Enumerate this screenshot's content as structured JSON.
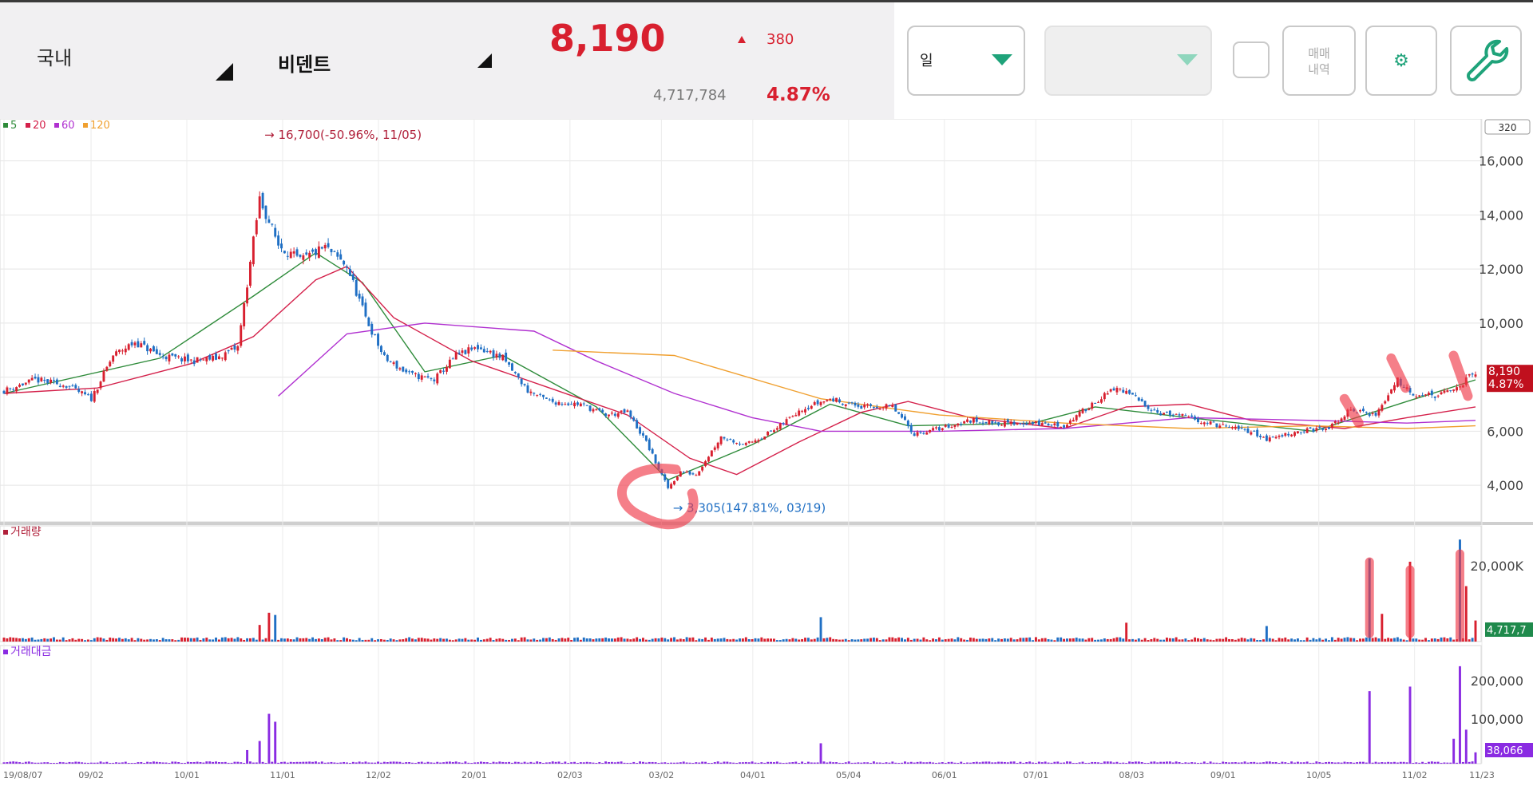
{
  "header": {
    "market": "국내",
    "stock_name": "비덴트",
    "price": "8,190",
    "change": "380",
    "volume": "4,717,784",
    "change_pct": "4.87%"
  },
  "toolbar": {
    "period_label": "일",
    "trade_history_line1": "매매",
    "trade_history_line2": "내역",
    "settings_icon": "gear-icon",
    "tool_icon": "wrench-icon"
  },
  "colors": {
    "up": "#d8202f",
    "down": "#1f6fc4",
    "ma5": "#2e8b3a",
    "ma20": "#d4204a",
    "ma60": "#b030d0",
    "ma120": "#f0a030",
    "accent": "#1fa37a",
    "annotation": "#ef3b4a"
  },
  "chart_data": [
    {
      "type": "candlestick",
      "panel": "price",
      "legend": [
        {
          "name": "5",
          "color": "#2e8b3a"
        },
        {
          "name": "20",
          "color": "#d4204a"
        },
        {
          "name": "60",
          "color": "#b030d0"
        },
        {
          "name": "120",
          "color": "#f0a030"
        }
      ],
      "scale_box": "320",
      "ylim": [
        3000,
        17200
      ],
      "y_ticks": [
        "16,000",
        "14,000",
        "12,000",
        "10,000",
        "8,000",
        "6,000",
        "4,000"
      ],
      "x_ticks": [
        "19/08/07",
        "09/02",
        "10/01",
        "11/01",
        "12/02",
        "20/01",
        "02/03",
        "03/02",
        "04/01",
        "05/04",
        "06/01",
        "07/01",
        "08/03",
        "09/01",
        "10/05",
        "11/02",
        "11/23"
      ],
      "high_marker": "16,700(-50.96%, 11/05)",
      "low_marker": "3,305(147.81%, 03/19)",
      "last_price_label": "8,190",
      "last_pct_label": "4.87%",
      "price_path": [
        [
          0,
          7500
        ],
        [
          10,
          7900
        ],
        [
          20,
          7700
        ],
        [
          28,
          7200
        ],
        [
          35,
          8800
        ],
        [
          42,
          9300
        ],
        [
          50,
          8800
        ],
        [
          60,
          8600
        ],
        [
          68,
          8700
        ],
        [
          75,
          9100
        ],
        [
          82,
          14600
        ],
        [
          88,
          12900
        ],
        [
          95,
          12300
        ],
        [
          103,
          12800
        ],
        [
          110,
          12100
        ],
        [
          116,
          10200
        ],
        [
          122,
          8700
        ],
        [
          130,
          8100
        ],
        [
          138,
          7900
        ],
        [
          145,
          8800
        ],
        [
          152,
          9100
        ],
        [
          160,
          8700
        ],
        [
          168,
          7500
        ],
        [
          175,
          7100
        ],
        [
          185,
          7000
        ],
        [
          193,
          6600
        ],
        [
          200,
          6700
        ],
        [
          206,
          5600
        ],
        [
          210,
          4600
        ],
        [
          213,
          3900
        ],
        [
          217,
          4500
        ],
        [
          222,
          4400
        ],
        [
          230,
          5800
        ],
        [
          238,
          5500
        ],
        [
          248,
          6100
        ],
        [
          255,
          6800
        ],
        [
          265,
          7200
        ],
        [
          275,
          6900
        ],
        [
          285,
          6900
        ],
        [
          292,
          5900
        ],
        [
          300,
          6100
        ],
        [
          310,
          6400
        ],
        [
          320,
          6300
        ],
        [
          330,
          6300
        ],
        [
          340,
          6200
        ],
        [
          350,
          7100
        ],
        [
          357,
          7600
        ],
        [
          362,
          7300
        ],
        [
          370,
          6700
        ],
        [
          380,
          6500
        ],
        [
          390,
          6200
        ],
        [
          400,
          6000
        ],
        [
          405,
          5700
        ],
        [
          415,
          6000
        ],
        [
          425,
          6100
        ],
        [
          432,
          6800
        ],
        [
          440,
          6600
        ],
        [
          447,
          7900
        ],
        [
          452,
          7400
        ],
        [
          460,
          7300
        ],
        [
          466,
          7600
        ],
        [
          472,
          8190
        ]
      ],
      "ma_lines": [
        {
          "name": "5",
          "points": [
            [
              0,
              7400
            ],
            [
              50,
              8700
            ],
            [
              80,
              11000
            ],
            [
              100,
              12600
            ],
            [
              115,
              11500
            ],
            [
              135,
              8200
            ],
            [
              160,
              8800
            ],
            [
              190,
              6900
            ],
            [
              213,
              4200
            ],
            [
              240,
              5500
            ],
            [
              265,
              7000
            ],
            [
              290,
              6200
            ],
            [
              330,
              6300
            ],
            [
              350,
              6900
            ],
            [
              380,
              6500
            ],
            [
              420,
              6000
            ],
            [
              450,
              7100
            ],
            [
              472,
              7900
            ]
          ]
        },
        {
          "name": "20",
          "points": [
            [
              0,
              7400
            ],
            [
              30,
              7600
            ],
            [
              60,
              8500
            ],
            [
              80,
              9500
            ],
            [
              100,
              11600
            ],
            [
              110,
              12100
            ],
            [
              125,
              10200
            ],
            [
              150,
              8600
            ],
            [
              175,
              7600
            ],
            [
              200,
              6600
            ],
            [
              220,
              5000
            ],
            [
              235,
              4400
            ],
            [
              255,
              5600
            ],
            [
              275,
              6700
            ],
            [
              290,
              7100
            ],
            [
              310,
              6500
            ],
            [
              340,
              6100
            ],
            [
              360,
              6900
            ],
            [
              380,
              7000
            ],
            [
              400,
              6400
            ],
            [
              430,
              6100
            ],
            [
              450,
              6500
            ],
            [
              472,
              6900
            ]
          ]
        },
        {
          "name": "60",
          "points": [
            [
              88,
              7300
            ],
            [
              110,
              9600
            ],
            [
              135,
              10000
            ],
            [
              170,
              9700
            ],
            [
              190,
              8600
            ],
            [
              215,
              7400
            ],
            [
              240,
              6500
            ],
            [
              262,
              6000
            ],
            [
              300,
              6000
            ],
            [
              340,
              6100
            ],
            [
              380,
              6500
            ],
            [
              420,
              6400
            ],
            [
              450,
              6300
            ],
            [
              472,
              6400
            ]
          ]
        },
        {
          "name": "120",
          "points": [
            [
              176,
              9000
            ],
            [
              215,
              8800
            ],
            [
              262,
              7200
            ],
            [
              300,
              6600
            ],
            [
              340,
              6300
            ],
            [
              380,
              6100
            ],
            [
              420,
              6200
            ],
            [
              450,
              6100
            ],
            [
              472,
              6200
            ]
          ]
        }
      ]
    },
    {
      "type": "bar",
      "panel": "volume",
      "title": "거래량",
      "y_ticks": [
        "20,000K"
      ],
      "last_label": "4,717,7",
      "spikes": [
        [
          85,
          0.26
        ],
        [
          87,
          0.24
        ],
        [
          82,
          0.15
        ],
        [
          262,
          0.22
        ],
        [
          442,
          0.25
        ],
        [
          360,
          0.17
        ],
        [
          405,
          0.14
        ],
        [
          438,
          0.75
        ],
        [
          451,
          0.72
        ],
        [
          467,
          0.92
        ],
        [
          469,
          0.5
        ],
        [
          472,
          0.19
        ]
      ]
    },
    {
      "type": "bar",
      "panel": "trading_value",
      "title": "거래대금",
      "y_ticks": [
        "200,000",
        "100,000"
      ],
      "last_label": "38,066",
      "spikes": [
        [
          85,
          0.44
        ],
        [
          87,
          0.37
        ],
        [
          82,
          0.2
        ],
        [
          78,
          0.12
        ],
        [
          262,
          0.18
        ],
        [
          438,
          0.64
        ],
        [
          451,
          0.68
        ],
        [
          465,
          0.22
        ],
        [
          467,
          0.86
        ],
        [
          469,
          0.3
        ],
        [
          472,
          0.1
        ]
      ]
    }
  ]
}
